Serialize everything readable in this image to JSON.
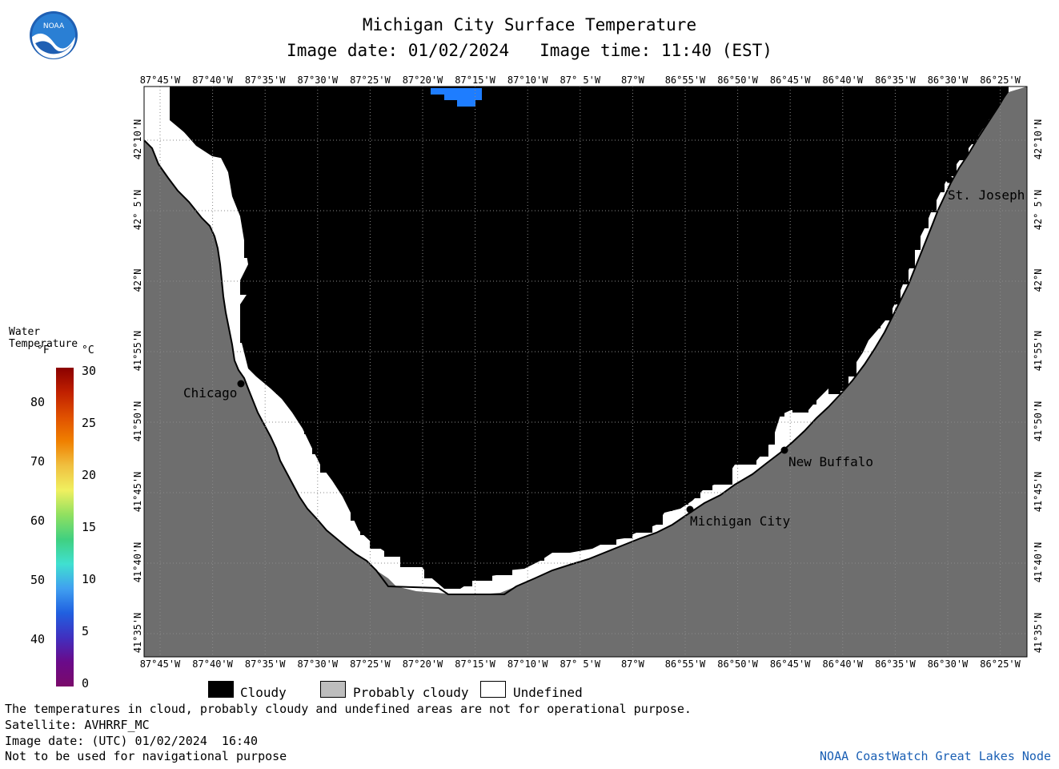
{
  "header": {
    "title": "Michigan City Surface Temperature",
    "image_date": "Image date: 01/02/2024",
    "image_time": "Image time: 11:40 (EST)",
    "logo_text": "NOAA"
  },
  "colors": {
    "cloudy": "#000000",
    "probably_cloudy": "#6e6e6e",
    "undefined": "#ffffff",
    "land": "#6e6e6e",
    "water_warm_patch": "#1e7dff",
    "water_cool_patch": "#0a64ff",
    "credit": "#1a5fb4"
  },
  "map": {
    "lon_labels": [
      "87°45'W",
      "87°40'W",
      "87°35'W",
      "87°30'W",
      "87°25'W",
      "87°20'W",
      "87°15'W",
      "87°10'W",
      "87° 5'W",
      "87°W",
      "86°55'W",
      "86°50'W",
      "86°45'W",
      "86°40'W",
      "86°35'W",
      "86°30'W",
      "86°25'W"
    ],
    "lat_labels": [
      "42°10'N",
      "42° 5'N",
      "42°N",
      "41°55'N",
      "41°50'N",
      "41°45'N",
      "41°40'N",
      "41°35'N"
    ],
    "cities": [
      {
        "name": "Chicago"
      },
      {
        "name": "St. Joseph"
      },
      {
        "name": "New Buffalo"
      },
      {
        "name": "Michigan City"
      }
    ]
  },
  "colorbar": {
    "title": "Water Temperature",
    "unit_f": "°F",
    "unit_c": "°C",
    "f_ticks": [
      "80",
      "70",
      "60",
      "50",
      "40"
    ],
    "c_ticks": [
      "30",
      "25",
      "20",
      "15",
      "10",
      "5",
      "0"
    ],
    "stops": [
      "#f0e060",
      "#ee8a00",
      "#d03000",
      "#8a0000",
      "#5a0a5a",
      "#5a2aa0",
      "#2060e0",
      "#40b0f0",
      "#50e8c0",
      "#60d060",
      "#d0e850"
    ]
  },
  "legend": {
    "items": [
      {
        "label": "Cloudy"
      },
      {
        "label": "Probably cloudy"
      },
      {
        "label": "Undefined"
      }
    ]
  },
  "footer": {
    "notice": "The temperatures in cloud, probably cloudy and undefined areas are not for operational purpose.",
    "satellite": "Satellite: AVHRRF_MC",
    "utc_date": "Image date: (UTC) 01/02/2024  16:40",
    "nav_warning": "Not to be used for navigational purpose",
    "credit": "NOAA CoastWatch Great Lakes Node"
  }
}
